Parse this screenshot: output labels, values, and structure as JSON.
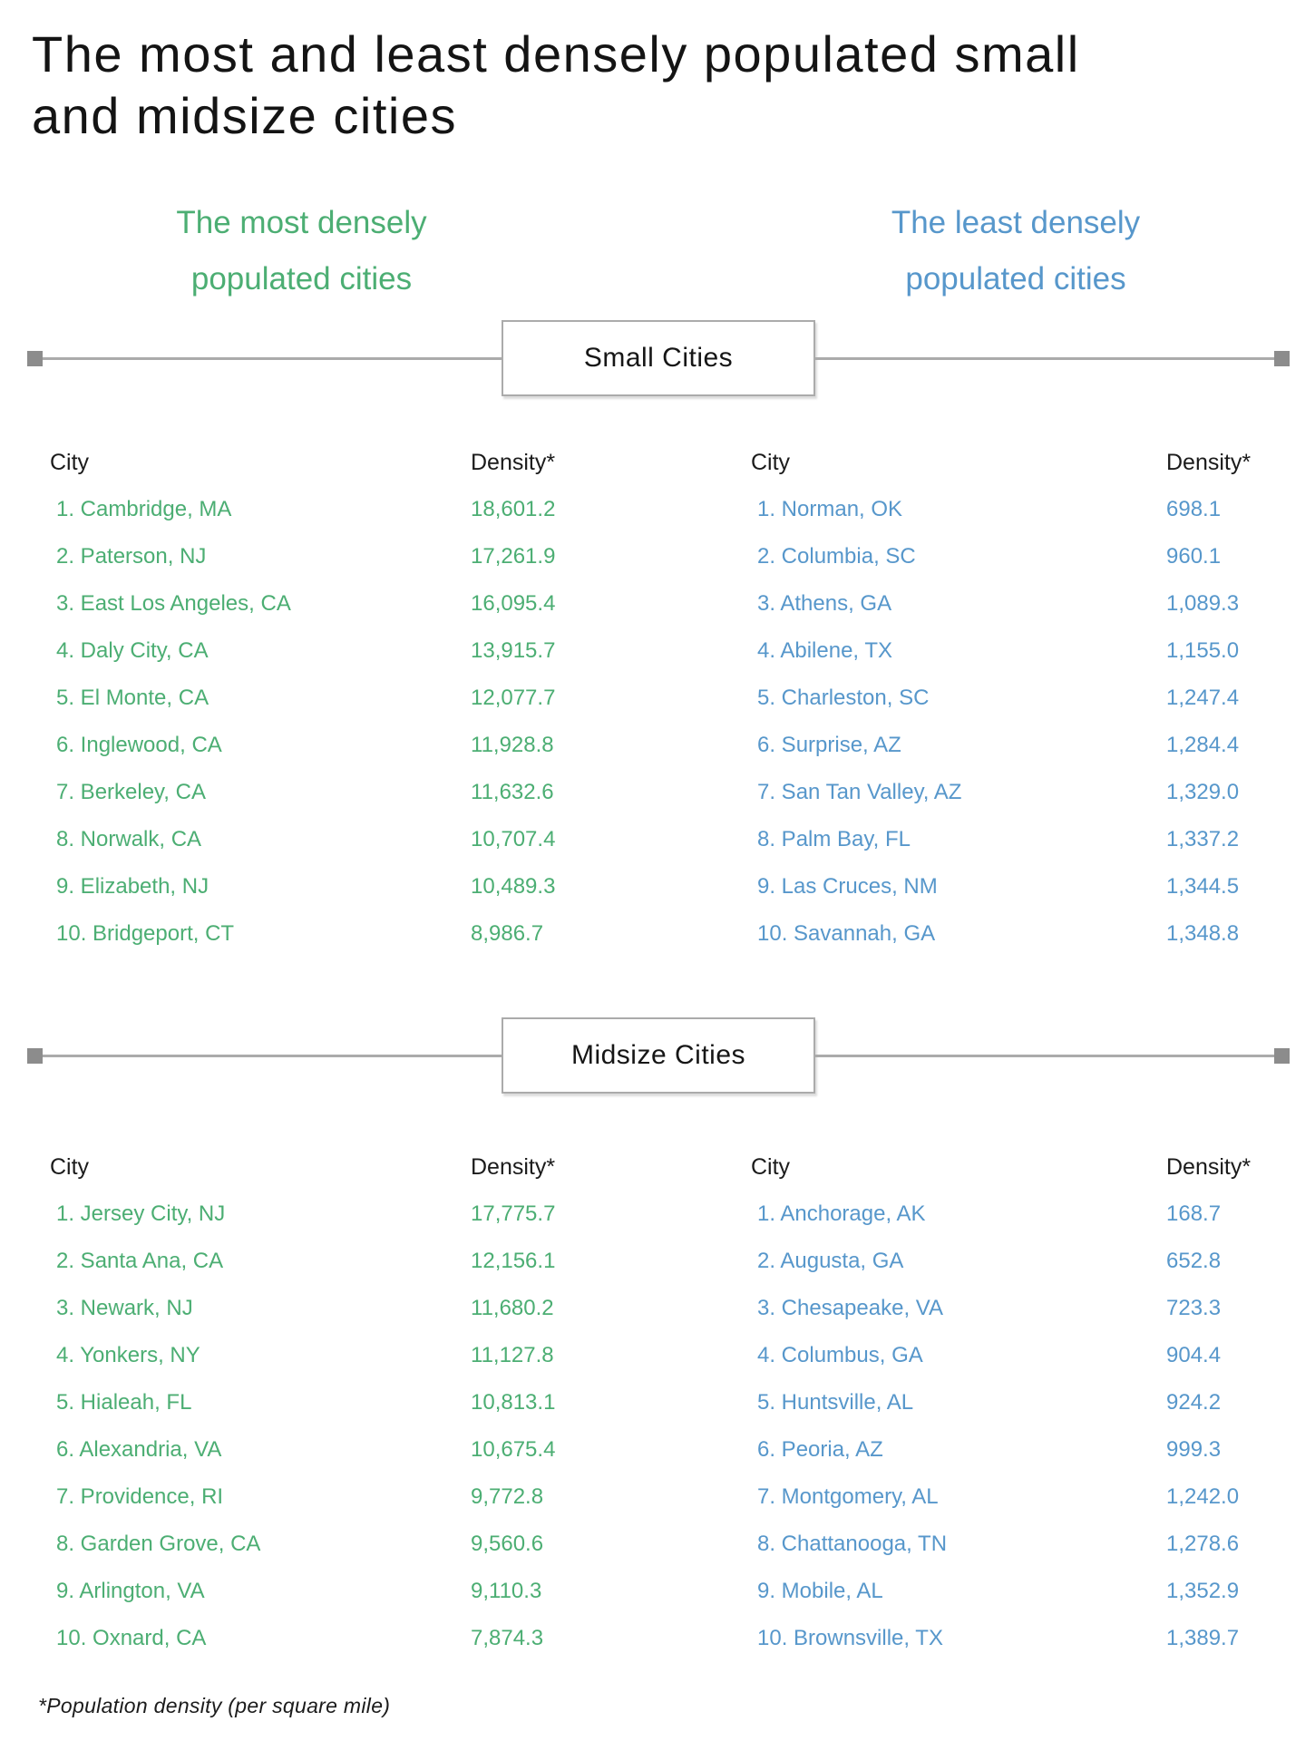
{
  "titles": {
    "line1": "The most and least densely populated small",
    "line2": "and midsize cities"
  },
  "subtitles": {
    "most": {
      "line1": "The most densely",
      "line2": "populated cities"
    },
    "least": {
      "line1": "The least densely",
      "line2": "populated cities"
    }
  },
  "dividers": {
    "small": "Small Cities",
    "midsize": "Midsize Cities"
  },
  "headers": {
    "city": "City",
    "density": "Density*"
  },
  "footnote": "*Population density (per square mile)",
  "colors": {
    "most_accent": "#4CAE73",
    "least_accent": "#5797CB",
    "divider_gray": "#ABABAB",
    "square_gray": "#8C8C8C",
    "text_dark": "#1E1E1E"
  },
  "rows": {
    "small_most": [
      {
        "label": "1. Cambridge, MA",
        "value": "18,601.2"
      },
      {
        "label": "2. Paterson, NJ",
        "value": "17,261.9"
      },
      {
        "label": "3. East Los Angeles, CA",
        "value": "16,095.4"
      },
      {
        "label": "4. Daly City, CA",
        "value": "13,915.7"
      },
      {
        "label": "5. El Monte, CA",
        "value": "12,077.7"
      },
      {
        "label": "6. Inglewood, CA",
        "value": "11,928.8"
      },
      {
        "label": "7. Berkeley, CA",
        "value": "11,632.6"
      },
      {
        "label": "8. Norwalk, CA",
        "value": "10,707.4"
      },
      {
        "label": "9. Elizabeth, NJ",
        "value": "10,489.3"
      },
      {
        "label": "10. Bridgeport, CT",
        "value": "8,986.7"
      }
    ],
    "small_least": [
      {
        "label": "1. Norman, OK",
        "value": "698.1"
      },
      {
        "label": "2. Columbia, SC",
        "value": "960.1"
      },
      {
        "label": "3. Athens, GA",
        "value": "1,089.3"
      },
      {
        "label": "4. Abilene, TX",
        "value": "1,155.0"
      },
      {
        "label": "5. Charleston, SC",
        "value": "1,247.4"
      },
      {
        "label": "6. Surprise, AZ",
        "value": "1,284.4"
      },
      {
        "label": "7. San Tan Valley, AZ",
        "value": "1,329.0"
      },
      {
        "label": "8. Palm Bay, FL",
        "value": "1,337.2"
      },
      {
        "label": "9. Las Cruces, NM",
        "value": "1,344.5"
      },
      {
        "label": "10. Savannah, GA",
        "value": "1,348.8"
      }
    ],
    "mid_most": [
      {
        "label": "1. Jersey City, NJ",
        "value": "17,775.7"
      },
      {
        "label": "2. Santa Ana, CA",
        "value": "12,156.1"
      },
      {
        "label": "3. Newark, NJ",
        "value": "11,680.2"
      },
      {
        "label": "4. Yonkers, NY",
        "value": "11,127.8"
      },
      {
        "label": "5. Hialeah, FL",
        "value": "10,813.1"
      },
      {
        "label": "6. Alexandria, VA",
        "value": "10,675.4"
      },
      {
        "label": "7. Providence, RI",
        "value": "9,772.8"
      },
      {
        "label": "8. Garden Grove, CA",
        "value": "9,560.6"
      },
      {
        "label": "9. Arlington, VA",
        "value": "9,110.3"
      },
      {
        "label": "10. Oxnard, CA",
        "value": "7,874.3"
      }
    ],
    "mid_least": [
      {
        "label": "1. Anchorage, AK",
        "value": "168.7"
      },
      {
        "label": "2. Augusta, GA",
        "value": "652.8"
      },
      {
        "label": "3. Chesapeake, VA",
        "value": "723.3"
      },
      {
        "label": "4. Columbus, GA",
        "value": "904.4"
      },
      {
        "label": "5. Huntsville, AL",
        "value": "924.2"
      },
      {
        "label": "6. Peoria, AZ",
        "value": "999.3"
      },
      {
        "label": "7. Montgomery, AL",
        "value": "1,242.0"
      },
      {
        "label": "8. Chattanooga, TN",
        "value": "1,278.6"
      },
      {
        "label": "9. Mobile, AL",
        "value": "1,352.9"
      },
      {
        "label": "10. Brownsville, TX",
        "value": "1,389.7"
      }
    ]
  },
  "chart_data": {
    "type": "table",
    "title": "The most and least densely populated small and midsize cities",
    "footnote": "*Population density (per square mile)",
    "sections": [
      {
        "name": "Small Cities",
        "most_densely_populated": {
          "columns": [
            "City",
            "Density*"
          ],
          "rows": [
            [
              "Cambridge, MA",
              18601.2
            ],
            [
              "Paterson, NJ",
              17261.9
            ],
            [
              "East Los Angeles, CA",
              16095.4
            ],
            [
              "Daly City, CA",
              13915.7
            ],
            [
              "El Monte, CA",
              12077.7
            ],
            [
              "Inglewood, CA",
              11928.8
            ],
            [
              "Berkeley, CA",
              11632.6
            ],
            [
              "Norwalk, CA",
              10707.4
            ],
            [
              "Elizabeth, NJ",
              10489.3
            ],
            [
              "Bridgeport, CT",
              8986.7
            ]
          ]
        },
        "least_densely_populated": {
          "columns": [
            "City",
            "Density*"
          ],
          "rows": [
            [
              "Norman, OK",
              698.1
            ],
            [
              "Columbia, SC",
              960.1
            ],
            [
              "Athens, GA",
              1089.3
            ],
            [
              "Abilene, TX",
              1155.0
            ],
            [
              "Charleston, SC",
              1247.4
            ],
            [
              "Surprise, AZ",
              1284.4
            ],
            [
              "San Tan Valley, AZ",
              1329.0
            ],
            [
              "Palm Bay, FL",
              1337.2
            ],
            [
              "Las Cruces, NM",
              1344.5
            ],
            [
              "Savannah, GA",
              1348.8
            ]
          ]
        }
      },
      {
        "name": "Midsize Cities",
        "most_densely_populated": {
          "columns": [
            "City",
            "Density*"
          ],
          "rows": [
            [
              "Jersey City, NJ",
              17775.7
            ],
            [
              "Santa Ana, CA",
              12156.1
            ],
            [
              "Newark, NJ",
              11680.2
            ],
            [
              "Yonkers, NY",
              11127.8
            ],
            [
              "Hialeah, FL",
              10813.1
            ],
            [
              "Alexandria, VA",
              10675.4
            ],
            [
              "Providence, RI",
              9772.8
            ],
            [
              "Garden Grove, CA",
              9560.6
            ],
            [
              "Arlington, VA",
              9110.3
            ],
            [
              "Oxnard, CA",
              7874.3
            ]
          ]
        },
        "least_densely_populated": {
          "columns": [
            "City",
            "Density*"
          ],
          "rows": [
            [
              "Anchorage, AK",
              168.7
            ],
            [
              "Augusta, GA",
              652.8
            ],
            [
              "Chesapeake, VA",
              723.3
            ],
            [
              "Columbus, GA",
              904.4
            ],
            [
              "Huntsville, AL",
              924.2
            ],
            [
              "Peoria, AZ",
              999.3
            ],
            [
              "Montgomery, AL",
              1242.0
            ],
            [
              "Chattanooga, TN",
              1278.6
            ],
            [
              "Mobile, AL",
              1352.9
            ],
            [
              "Brownsville, TX",
              1389.7
            ]
          ]
        }
      }
    ]
  }
}
